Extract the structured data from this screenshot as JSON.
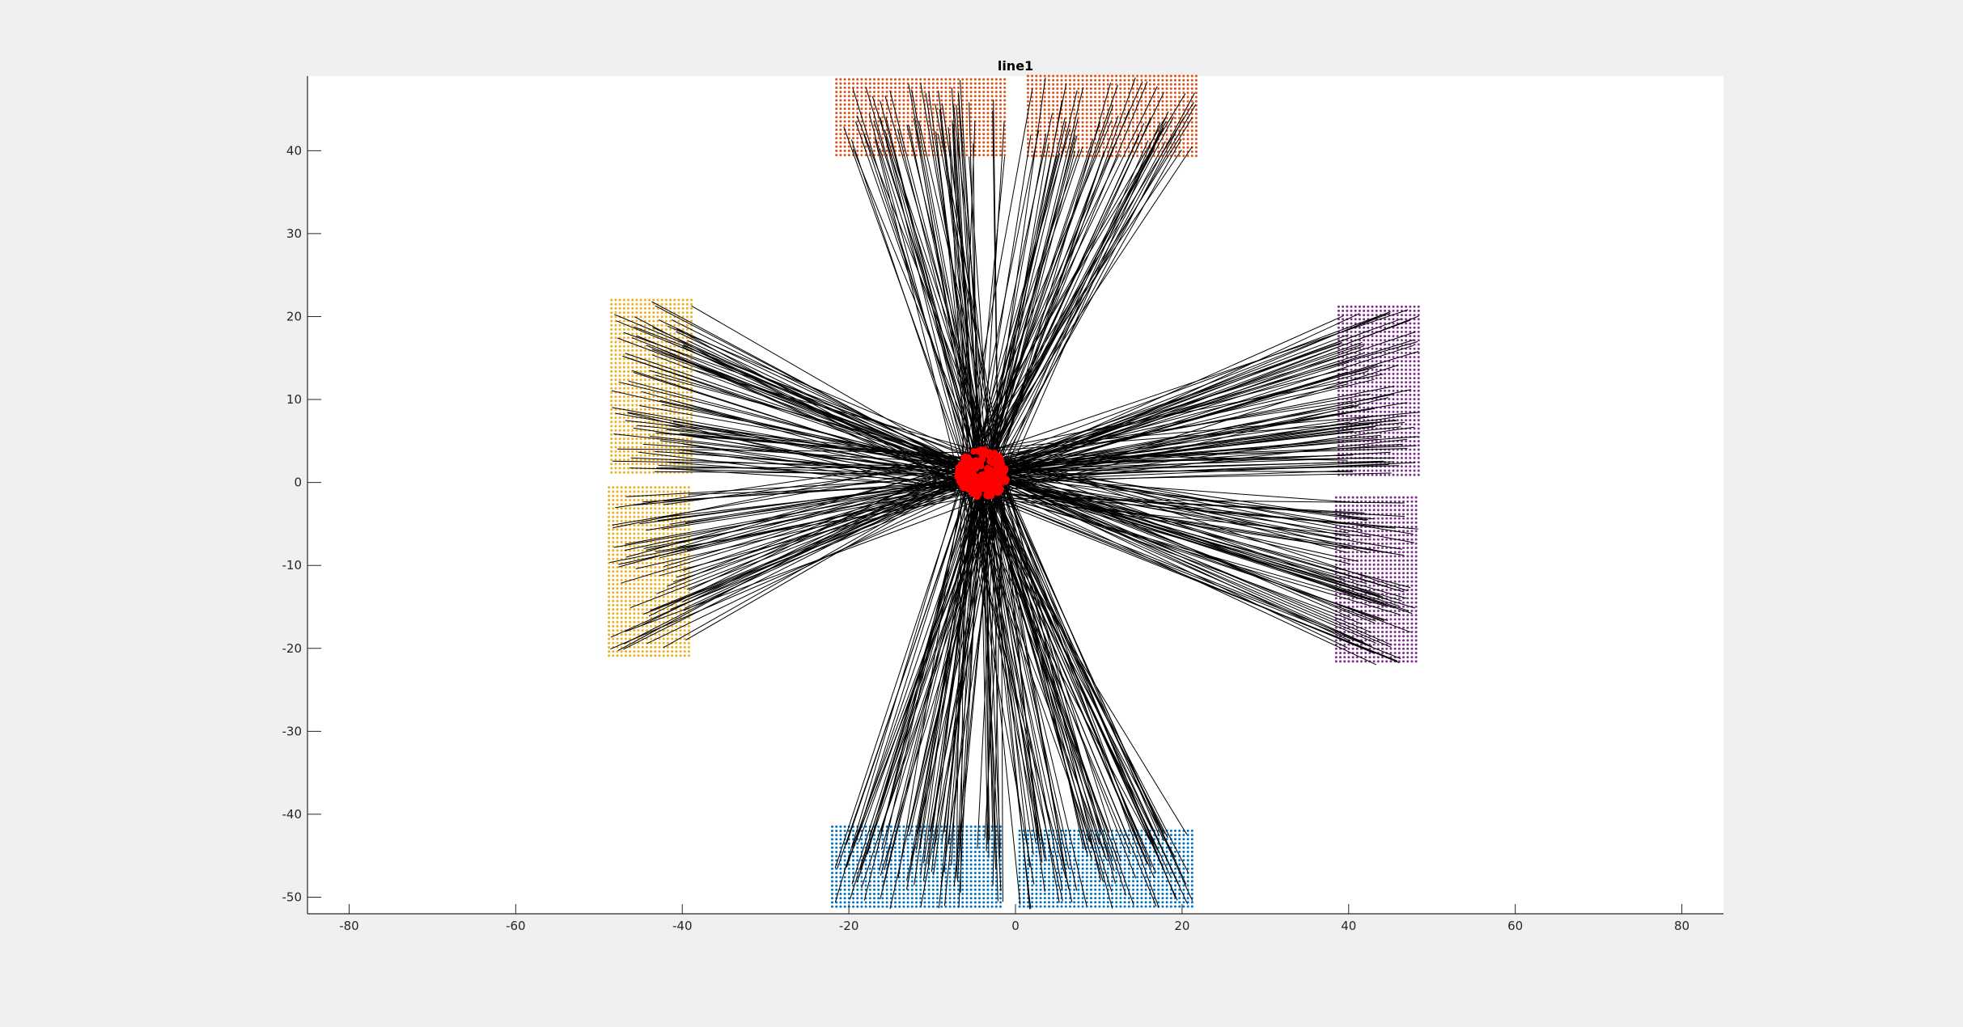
{
  "chart_data": {
    "type": "scatter",
    "title": "line1",
    "xlabel": "",
    "ylabel": "",
    "xlim": [
      -85,
      85
    ],
    "ylim": [
      -52,
      49
    ],
    "grid": false,
    "legend": "none",
    "x_ticks": [
      -80,
      -60,
      -40,
      -20,
      0,
      20,
      40,
      60,
      80
    ],
    "y_ticks": [
      -50,
      -40,
      -30,
      -20,
      -10,
      0,
      10,
      20,
      30,
      40
    ],
    "x_tick_labels": [
      "-80",
      "-60",
      "-40",
      "-20",
      "0",
      "20",
      "40",
      "60",
      "80"
    ],
    "y_tick_labels": [
      "-50",
      "-40",
      "-30",
      "-20",
      "-10",
      "0",
      "10",
      "20",
      "30",
      "40"
    ],
    "center_cluster": {
      "x": -4,
      "y": 1,
      "radius": 3,
      "color": "#ff0000"
    },
    "series": [
      {
        "color": "#d95319",
        "point_grid": {
          "x": [
            -21.5,
            -0.8
          ],
          "y": [
            39,
            48.6
          ]
        },
        "line_count": 60
      },
      {
        "color": "#d95319",
        "point_grid": {
          "x": [
            1.5,
            22
          ],
          "y": [
            39.3,
            49
          ]
        },
        "line_count": 60
      },
      {
        "color": "#edb120",
        "point_grid": {
          "x": [
            -48.5,
            -38.8
          ],
          "y": [
            1.2,
            22
          ]
        },
        "line_count": 80
      },
      {
        "color": "#edb120",
        "point_grid": {
          "x": [
            -48.8,
            -39
          ],
          "y": [
            -21,
            -0.6
          ]
        },
        "line_count": 60
      },
      {
        "color": "#7e2f8e",
        "point_grid": {
          "x": [
            38.8,
            48.7
          ],
          "y": [
            0.8,
            21.2
          ]
        },
        "line_count": 80
      },
      {
        "color": "#7e2f8e",
        "point_grid": {
          "x": [
            38.5,
            48.4
          ],
          "y": [
            -22,
            -1.8
          ]
        },
        "line_count": 70
      },
      {
        "color": "#0072bd",
        "point_grid": {
          "x": [
            -22,
            -1.3
          ],
          "y": [
            -51.5,
            -41.5
          ]
        },
        "line_count": 80
      },
      {
        "color": "#0072bd",
        "point_grid": {
          "x": [
            0.5,
            21.5
          ],
          "y": [
            -51.5,
            -42
          ]
        },
        "line_count": 80
      }
    ],
    "connector_color": "#000000"
  }
}
